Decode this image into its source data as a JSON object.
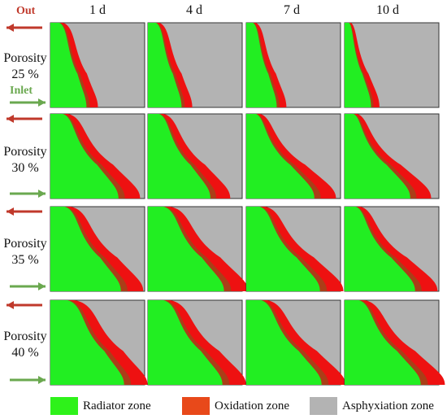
{
  "column_headers": [
    "1 d",
    "4 d",
    "7 d",
    "10 d"
  ],
  "rows": [
    {
      "line1": "Porosity",
      "line2": "25 %"
    },
    {
      "line1": "Porosity",
      "line2": "30 %"
    },
    {
      "line1": "Porosity",
      "line2": "35 %"
    },
    {
      "line1": "Porosity",
      "line2": "40 %"
    }
  ],
  "arrows": {
    "out_label": "Out",
    "inlet_label": "Inlet",
    "out_color": "#c0392b",
    "inlet_color": "#6aa84f"
  },
  "legend": [
    {
      "label": "Radiator zone",
      "color": "#2ef21a"
    },
    {
      "label": "Oxidation zone",
      "color": "#e8491a"
    },
    {
      "label": "Asphyxiation zone",
      "color": "#b3b3b3"
    }
  ],
  "zone_colors": {
    "radiator": "#22ee22",
    "oxidation": "#ee1111",
    "oxidation_dark": "#9a4a1a",
    "asphyxiation": "#b3b3b3"
  },
  "panel_zone_widths": [
    [
      {
        "ox_top": 0.2,
        "ox_bottom": 0.45
      },
      {
        "ox_top": 0.18,
        "ox_bottom": 0.42
      },
      {
        "ox_top": 0.15,
        "ox_bottom": 0.38
      },
      {
        "ox_top": 0.1,
        "ox_bottom": 0.33
      }
    ],
    [
      {
        "ox_top": 0.28,
        "ox_bottom": 0.85
      },
      {
        "ox_top": 0.25,
        "ox_bottom": 0.78
      },
      {
        "ox_top": 0.22,
        "ox_bottom": 0.85
      },
      {
        "ox_top": 0.2,
        "ox_bottom": 0.82
      }
    ],
    [
      {
        "ox_top": 0.32,
        "ox_bottom": 0.88
      },
      {
        "ox_top": 0.35,
        "ox_bottom": 0.95
      },
      {
        "ox_top": 0.3,
        "ox_bottom": 0.92
      },
      {
        "ox_top": 0.25,
        "ox_bottom": 0.88
      }
    ],
    [
      {
        "ox_top": 0.38,
        "ox_bottom": 0.92
      },
      {
        "ox_top": 0.35,
        "ox_bottom": 0.93
      },
      {
        "ox_top": 0.33,
        "ox_bottom": 0.94
      },
      {
        "ox_top": 0.32,
        "ox_bottom": 0.95
      }
    ]
  ]
}
